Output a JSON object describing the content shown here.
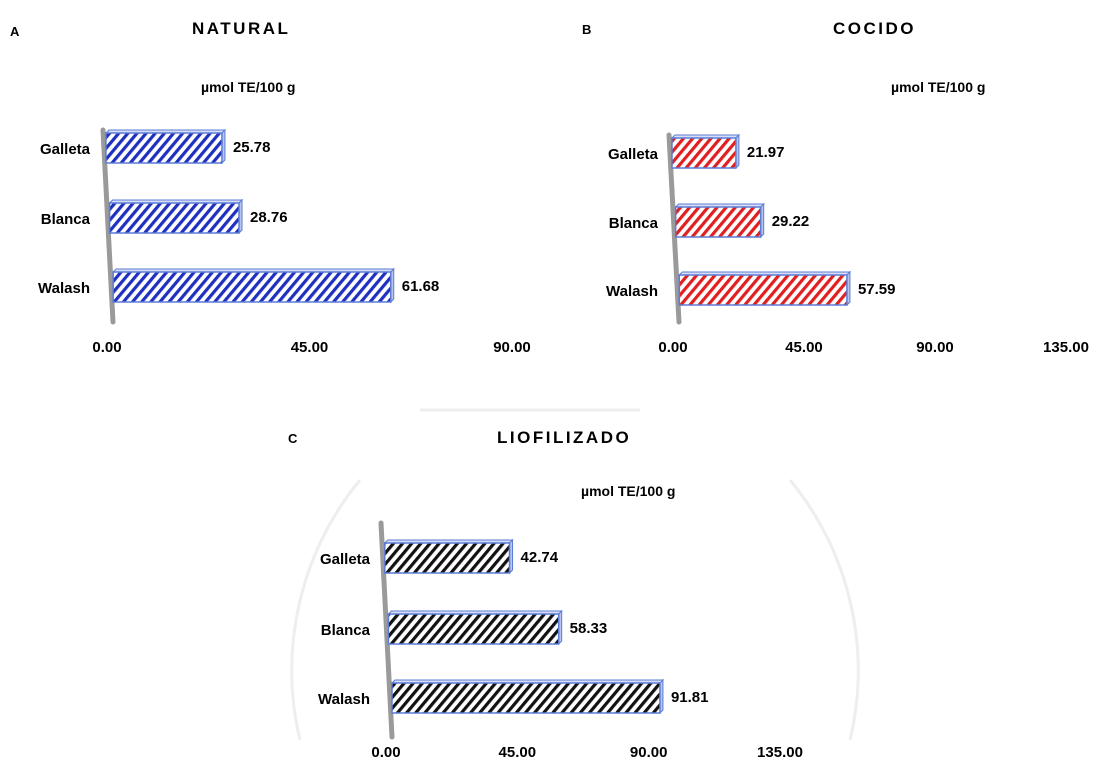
{
  "chart_data": [
    {
      "type": "bar",
      "letter": "A",
      "title": "NATURAL",
      "unit_label": "µmol TE/100  g",
      "categories": [
        "Galleta",
        "Blanca",
        "Walash"
      ],
      "values": [
        25.78,
        28.76,
        61.68
      ],
      "value_labels": [
        "25.78",
        "28.76",
        "61.68"
      ],
      "xticks": [
        "0.00",
        "45.00",
        "90.00"
      ],
      "xlim": [
        0,
        90
      ],
      "orientation": "horizontal",
      "bar_color": "#1f2fbf",
      "grid": false,
      "legend": "none"
    },
    {
      "type": "bar",
      "letter": "B",
      "title": "COCIDO",
      "unit_label": "µmol TE/100  g",
      "categories": [
        "Galleta",
        "Blanca",
        "Walash"
      ],
      "values": [
        21.97,
        29.22,
        57.59
      ],
      "value_labels": [
        "21.97",
        "29.22",
        "57.59"
      ],
      "xticks": [
        "0.00",
        "45.00",
        "90.00",
        "135.00"
      ],
      "xlim": [
        0,
        135
      ],
      "orientation": "horizontal",
      "bar_color": "#e02020",
      "grid": false,
      "legend": "none"
    },
    {
      "type": "bar",
      "letter": "C",
      "title": "LIOFILIZADO",
      "unit_label": "µmol TE/100  g",
      "categories": [
        "Galleta",
        "Blanca",
        "Walash"
      ],
      "values": [
        42.74,
        58.33,
        91.81
      ],
      "value_labels": [
        "42.74",
        "58.33",
        "91.81"
      ],
      "xticks": [
        "0.00",
        "45.00",
        "90.00",
        "135.00"
      ],
      "xlim": [
        0,
        135
      ],
      "orientation": "horizontal",
      "bar_color": "#111111",
      "grid": false,
      "legend": "none"
    }
  ],
  "colors": {
    "axis": "#9a9a9a",
    "bar_border": "#5b7bd5",
    "background": "#ffffff"
  }
}
